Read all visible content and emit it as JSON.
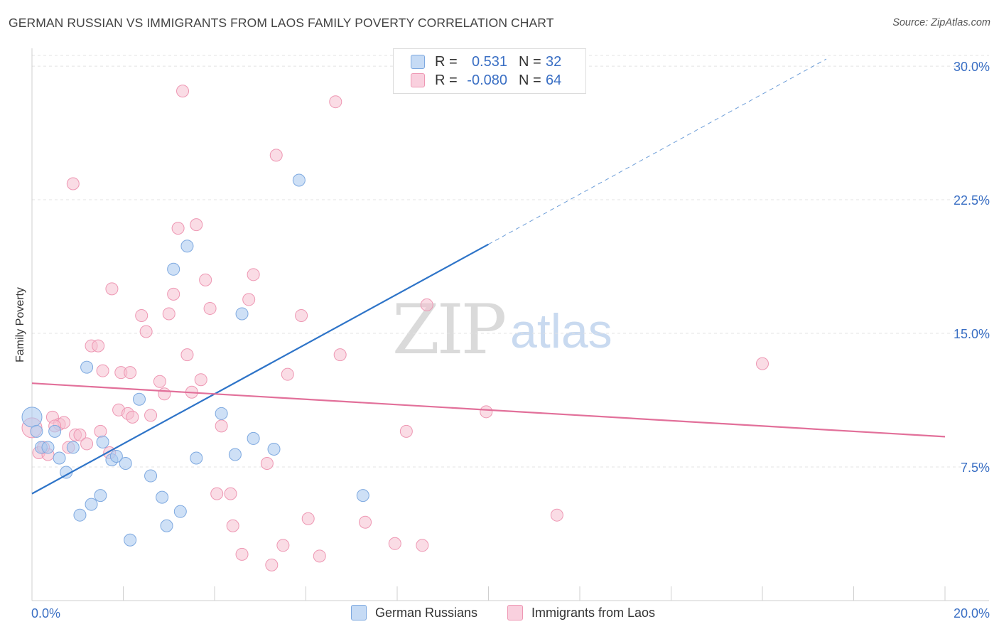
{
  "header": {
    "title": "GERMAN RUSSIAN VS IMMIGRANTS FROM LAOS FAMILY POVERTY CORRELATION CHART",
    "source": "Source: ZipAtlas.com"
  },
  "watermark": {
    "part1": "ZIP",
    "part2": "atlas"
  },
  "legend_top": {
    "rows": [
      {
        "r_label": "R =",
        "r_value": "0.531",
        "n_label": "N =",
        "n_value": "32"
      },
      {
        "r_label": "R =",
        "r_value": "-0.080",
        "n_label": "N =",
        "n_value": "64"
      }
    ]
  },
  "legend_bottom": {
    "items": [
      {
        "label": "German Russians"
      },
      {
        "label": "Immigrants from Laos"
      }
    ]
  },
  "colors": {
    "blue_fill": "#aecbf0",
    "blue_stroke": "#7ea9e0",
    "blue_line": "#2e74c8",
    "pink_fill": "#f6bfd0",
    "pink_stroke": "#ee97b3",
    "pink_line": "#e2709a",
    "tick_text": "#3a6fc4",
    "grid": "#e3e3e3"
  },
  "chart_data": {
    "type": "scatter",
    "title": "GERMAN RUSSIAN VS IMMIGRANTS FROM LAOS FAMILY POVERTY CORRELATION CHART",
    "xlabel": "",
    "ylabel": "Family Poverty",
    "xlim": [
      0,
      20
    ],
    "ylim": [
      0,
      31
    ],
    "x_tick_labels": [
      "0.0%",
      "20.0%"
    ],
    "y_ticks": [
      7.5,
      15.0,
      22.5,
      30.0
    ],
    "y_tick_labels": [
      "7.5%",
      "15.0%",
      "22.5%",
      "30.0%"
    ],
    "grid": "horizontal dashed",
    "legend_position": "top-center",
    "series": [
      {
        "name": "German Russians",
        "r": 0.531,
        "n": 32,
        "trend": {
          "x0": 0,
          "y0": 6.0,
          "x1": 10,
          "y1": 20.0,
          "dashed_to_x": 17.4,
          "dashed_to_y": 30.4
        },
        "points": [
          [
            0,
            10.3
          ],
          [
            0.2,
            8.6
          ],
          [
            0.35,
            8.6
          ],
          [
            0.5,
            9.5
          ],
          [
            0.6,
            8.0
          ],
          [
            0.75,
            7.2
          ],
          [
            0.9,
            8.6
          ],
          [
            1.05,
            4.8
          ],
          [
            1.2,
            13.1
          ],
          [
            1.3,
            5.4
          ],
          [
            1.5,
            5.9
          ],
          [
            1.55,
            8.9
          ],
          [
            1.75,
            7.9
          ],
          [
            1.85,
            8.1
          ],
          [
            2.05,
            7.7
          ],
          [
            2.15,
            3.4
          ],
          [
            2.35,
            11.3
          ],
          [
            2.6,
            7.0
          ],
          [
            2.85,
            5.8
          ],
          [
            2.95,
            4.2
          ],
          [
            3.1,
            18.6
          ],
          [
            3.25,
            5.0
          ],
          [
            3.4,
            19.9
          ],
          [
            3.6,
            8.0
          ],
          [
            4.15,
            10.5
          ],
          [
            4.45,
            8.2
          ],
          [
            4.6,
            16.1
          ],
          [
            4.85,
            9.1
          ],
          [
            5.3,
            8.5
          ],
          [
            5.85,
            23.6
          ],
          [
            7.25,
            5.9
          ],
          [
            0.1,
            9.5
          ]
        ]
      },
      {
        "name": "Immigrants from Laos",
        "r": -0.08,
        "n": 64,
        "trend": {
          "x0": 0,
          "y0": 12.2,
          "x1": 20,
          "y1": 9.2
        },
        "points": [
          [
            0,
            9.7
          ],
          [
            0.15,
            8.3
          ],
          [
            0.35,
            8.2
          ],
          [
            0.45,
            10.3
          ],
          [
            0.6,
            9.9
          ],
          [
            0.7,
            10.0
          ],
          [
            0.8,
            8.6
          ],
          [
            0.95,
            9.3
          ],
          [
            1.05,
            9.3
          ],
          [
            1.2,
            8.8
          ],
          [
            1.3,
            14.3
          ],
          [
            1.45,
            14.3
          ],
          [
            1.5,
            9.5
          ],
          [
            1.55,
            12.9
          ],
          [
            1.7,
            8.3
          ],
          [
            1.75,
            17.5
          ],
          [
            1.9,
            10.7
          ],
          [
            1.95,
            12.8
          ],
          [
            2.1,
            10.5
          ],
          [
            2.15,
            12.8
          ],
          [
            2.2,
            10.3
          ],
          [
            2.4,
            16.0
          ],
          [
            2.5,
            15.1
          ],
          [
            2.6,
            10.4
          ],
          [
            2.8,
            12.3
          ],
          [
            2.9,
            11.6
          ],
          [
            3.0,
            16.1
          ],
          [
            3.1,
            17.2
          ],
          [
            3.2,
            20.9
          ],
          [
            3.3,
            28.6
          ],
          [
            3.4,
            13.8
          ],
          [
            3.5,
            11.7
          ],
          [
            3.6,
            21.1
          ],
          [
            3.7,
            12.4
          ],
          [
            3.8,
            18.0
          ],
          [
            3.9,
            16.4
          ],
          [
            4.05,
            6.0
          ],
          [
            4.15,
            9.8
          ],
          [
            4.35,
            6.0
          ],
          [
            4.4,
            4.2
          ],
          [
            4.6,
            2.6
          ],
          [
            4.75,
            16.9
          ],
          [
            4.85,
            18.3
          ],
          [
            5.15,
            7.7
          ],
          [
            5.25,
            2.0
          ],
          [
            5.35,
            25.0
          ],
          [
            5.5,
            3.1
          ],
          [
            5.6,
            12.7
          ],
          [
            5.9,
            16.0
          ],
          [
            6.05,
            4.6
          ],
          [
            6.3,
            2.5
          ],
          [
            6.65,
            28.0
          ],
          [
            6.75,
            13.8
          ],
          [
            7.3,
            4.4
          ],
          [
            7.95,
            3.2
          ],
          [
            8.2,
            9.5
          ],
          [
            8.55,
            3.1
          ],
          [
            8.65,
            16.6
          ],
          [
            9.95,
            10.6
          ],
          [
            11.5,
            4.8
          ],
          [
            16.0,
            13.3
          ],
          [
            0.25,
            8.6
          ],
          [
            0.5,
            9.8
          ],
          [
            0.9,
            23.4
          ]
        ]
      }
    ]
  }
}
